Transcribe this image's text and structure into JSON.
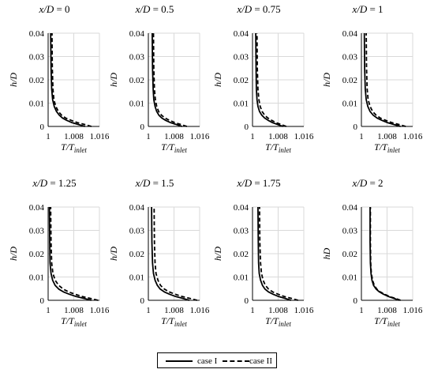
{
  "chart_data": [
    {
      "type": "line",
      "title": "x/D = 0",
      "title_parts": {
        "var": "x/D",
        "rest": " = 0"
      },
      "xlabel": "T/T_inlet",
      "ylabel": "h/D",
      "xlim": [
        1,
        1.016
      ],
      "ylim": [
        0,
        0.04
      ],
      "xticks": [
        "1",
        "1.008",
        "1.016"
      ],
      "yticks": [
        "0",
        "0.01",
        "0.02",
        "0.03",
        "0.04"
      ],
      "grid": true,
      "series": [
        {
          "name": "case I",
          "style": "solid",
          "x": [
            1.0115,
            1.0095,
            1.0075,
            1.0058,
            1.0045,
            1.0035,
            1.0026,
            1.0019,
            1.0014,
            1.0011,
            1.0009,
            1.0008
          ],
          "y": [
            0,
            0.0008,
            0.0016,
            0.0026,
            0.0036,
            0.0048,
            0.0064,
            0.0086,
            0.0115,
            0.016,
            0.025,
            0.04
          ]
        },
        {
          "name": "case II",
          "style": "dashed",
          "x": [
            1.0135,
            1.0115,
            1.0092,
            1.0072,
            1.0055,
            1.0042,
            1.0032,
            1.0024,
            1.0018,
            1.0015,
            1.0013,
            1.0012
          ],
          "y": [
            0,
            0.0008,
            0.0016,
            0.0026,
            0.0036,
            0.0048,
            0.0064,
            0.0086,
            0.0115,
            0.016,
            0.025,
            0.04
          ]
        }
      ]
    },
    {
      "type": "line",
      "title": "x/D = 0.5",
      "title_parts": {
        "var": "x/D",
        "rest": " = 0.5"
      },
      "xlabel": "T/T_inlet",
      "ylabel": "h/D",
      "xlim": [
        1,
        1.016
      ],
      "ylim": [
        0,
        0.04
      ],
      "xticks": [
        "1",
        "1.008",
        "1.016"
      ],
      "yticks": [
        "0",
        "0.01",
        "0.02",
        "0.03",
        "0.04"
      ],
      "grid": true,
      "series": [
        {
          "name": "case I",
          "style": "solid",
          "x": [
            1.0105,
            1.0088,
            1.007,
            1.0054,
            1.0042,
            1.0033,
            1.0026,
            1.0021,
            1.0017,
            1.0015,
            1.0013,
            1.0012
          ],
          "y": [
            0,
            0.0008,
            0.0016,
            0.0026,
            0.0036,
            0.0048,
            0.0064,
            0.0086,
            0.0115,
            0.016,
            0.025,
            0.04
          ]
        },
        {
          "name": "case II",
          "style": "dashed",
          "x": [
            1.012,
            1.0102,
            1.0083,
            1.0066,
            1.0052,
            1.0041,
            1.0032,
            1.0026,
            1.0022,
            1.0019,
            1.0017,
            1.0016
          ],
          "y": [
            0,
            0.0008,
            0.0016,
            0.0026,
            0.0036,
            0.0048,
            0.0064,
            0.0086,
            0.0115,
            0.016,
            0.025,
            0.04
          ]
        }
      ]
    },
    {
      "type": "line",
      "title": "x/D = 0.75",
      "title_parts": {
        "var": "x/D",
        "rest": " = 0.75"
      },
      "xlabel": "T/T_inlet",
      "ylabel": "h/D",
      "xlim": [
        1,
        1.016
      ],
      "ylim": [
        0,
        0.04
      ],
      "xticks": [
        "1",
        "1.008",
        "1.016"
      ],
      "yticks": [
        "0",
        "0.01",
        "0.02",
        "0.03",
        "0.04"
      ],
      "grid": true,
      "series": [
        {
          "name": "case I",
          "style": "solid",
          "x": [
            1.0095,
            1.0079,
            1.0063,
            1.0049,
            1.0038,
            1.0029,
            1.0022,
            1.0017,
            1.0014,
            1.0012,
            1.0011,
            1.001
          ],
          "y": [
            0,
            0.0008,
            0.0016,
            0.0026,
            0.0036,
            0.0048,
            0.0064,
            0.0086,
            0.0115,
            0.016,
            0.025,
            0.04
          ]
        },
        {
          "name": "case II",
          "style": "dashed",
          "x": [
            1.0105,
            1.009,
            1.0074,
            1.006,
            1.0048,
            1.0038,
            1.003,
            1.0024,
            1.002,
            1.0017,
            1.0015,
            1.0014
          ],
          "y": [
            0,
            0.0008,
            0.0016,
            0.0026,
            0.0036,
            0.0048,
            0.0064,
            0.0086,
            0.0115,
            0.016,
            0.025,
            0.04
          ]
        }
      ]
    },
    {
      "type": "line",
      "title": "x/D = 1",
      "title_parts": {
        "var": "x/D",
        "rest": " = 1"
      },
      "xlabel": "T/T_inlet",
      "ylabel": "h/D",
      "xlim": [
        1,
        1.016
      ],
      "ylim": [
        0,
        0.04
      ],
      "xticks": [
        "1",
        "1.008",
        "1.016"
      ],
      "yticks": [
        "0",
        "0.01",
        "0.02",
        "0.03",
        "0.04"
      ],
      "grid": true,
      "series": [
        {
          "name": "case I",
          "style": "solid",
          "x": [
            1.0122,
            1.0102,
            1.0082,
            1.0064,
            1.0049,
            1.0037,
            1.0027,
            1.002,
            1.0015,
            1.0012,
            1.001,
            1.0009
          ],
          "y": [
            0,
            0.0008,
            0.0016,
            0.0026,
            0.0036,
            0.0048,
            0.0064,
            0.0086,
            0.0115,
            0.016,
            0.025,
            0.04
          ]
        },
        {
          "name": "case II",
          "style": "dashed",
          "x": [
            1.0138,
            1.0118,
            1.0096,
            1.0076,
            1.0059,
            1.0046,
            1.0035,
            1.0027,
            1.0021,
            1.0018,
            1.0016,
            1.0015
          ],
          "y": [
            0,
            0.0008,
            0.0016,
            0.0026,
            0.0036,
            0.0048,
            0.0064,
            0.0086,
            0.0115,
            0.016,
            0.025,
            0.04
          ]
        }
      ]
    },
    {
      "type": "line",
      "title": "x/D = 1.25",
      "title_parts": {
        "var": "x/D",
        "rest": " = 1.25"
      },
      "xlabel": "T/T_inlet",
      "ylabel": "h/D",
      "xlim": [
        1,
        1.016
      ],
      "ylim": [
        0,
        0.04
      ],
      "xticks": [
        "1",
        "1.008",
        "1.016"
      ],
      "yticks": [
        "0",
        "0.01",
        "0.02",
        "0.03",
        "0.04"
      ],
      "grid": true,
      "series": [
        {
          "name": "case I",
          "style": "solid",
          "x": [
            1.0135,
            1.0112,
            1.0088,
            1.0066,
            1.0048,
            1.0033,
            1.0022,
            1.0014,
            1.0009,
            1.0006,
            1.0005,
            1.0004
          ],
          "y": [
            0,
            0.0008,
            0.0016,
            0.0026,
            0.0036,
            0.0048,
            0.0064,
            0.0086,
            0.0115,
            0.016,
            0.025,
            0.04
          ]
        },
        {
          "name": "case II",
          "style": "dashed",
          "x": [
            1.0155,
            1.0132,
            1.0107,
            1.0084,
            1.0064,
            1.0047,
            1.0033,
            1.0022,
            1.0015,
            1.0011,
            1.0009,
            1.0008
          ],
          "y": [
            0,
            0.0008,
            0.0016,
            0.0026,
            0.0036,
            0.0048,
            0.0064,
            0.0086,
            0.0115,
            0.016,
            0.025,
            0.04
          ]
        }
      ]
    },
    {
      "type": "line",
      "title": "x/D = 1.5",
      "title_parts": {
        "var": "x/D",
        "rest": " = 1.5"
      },
      "xlabel": "T/T_inlet",
      "ylabel": "h/D",
      "xlim": [
        1,
        1.016
      ],
      "ylim": [
        0,
        0.04
      ],
      "xticks": [
        "1",
        "1.008",
        "1.016"
      ],
      "yticks": [
        "0",
        "0.01",
        "0.02",
        "0.03",
        "0.04"
      ],
      "grid": true,
      "series": [
        {
          "name": "case I",
          "style": "solid",
          "x": [
            1.0128,
            1.0108,
            1.0086,
            1.0066,
            1.005,
            1.0037,
            1.0028,
            1.0021,
            1.0016,
            1.0013,
            1.0011,
            1.001
          ],
          "y": [
            0,
            0.0008,
            0.0016,
            0.0026,
            0.0036,
            0.0048,
            0.0064,
            0.0086,
            0.0115,
            0.016,
            0.025,
            0.04
          ]
        },
        {
          "name": "case II",
          "style": "dashed",
          "x": [
            1.0152,
            1.013,
            1.0106,
            1.0084,
            1.0065,
            1.005,
            1.0038,
            1.003,
            1.0024,
            1.0021,
            1.0019,
            1.0018
          ],
          "y": [
            0,
            0.0008,
            0.0016,
            0.0026,
            0.0036,
            0.0048,
            0.0064,
            0.0086,
            0.0115,
            0.016,
            0.025,
            0.04
          ]
        }
      ]
    },
    {
      "type": "line",
      "title": "x/D = 1.75",
      "title_parts": {
        "var": "x/D",
        "rest": " = 1.75"
      },
      "xlabel": "T/T_inlet",
      "ylabel": "h/D",
      "xlim": [
        1,
        1.016
      ],
      "ylim": [
        0,
        0.04
      ],
      "xticks": [
        "1",
        "1.008",
        "1.016"
      ],
      "yticks": [
        "0",
        "0.01",
        "0.02",
        "0.03",
        "0.04"
      ],
      "grid": true,
      "series": [
        {
          "name": "case I",
          "style": "solid",
          "x": [
            1.012,
            1.0102,
            1.0082,
            1.0064,
            1.005,
            1.0039,
            1.0031,
            1.0025,
            1.0021,
            1.0019,
            1.0018,
            1.0017
          ],
          "y": [
            0,
            0.0008,
            0.0016,
            0.0026,
            0.0036,
            0.0048,
            0.0064,
            0.0086,
            0.0115,
            0.016,
            0.025,
            0.04
          ]
        },
        {
          "name": "case II",
          "style": "dashed",
          "x": [
            1.0142,
            1.0122,
            1.01,
            1.008,
            1.0063,
            1.005,
            1.004,
            1.0033,
            1.0028,
            1.0025,
            1.0023,
            1.0022
          ],
          "y": [
            0,
            0.0008,
            0.0016,
            0.0026,
            0.0036,
            0.0048,
            0.0064,
            0.0086,
            0.0115,
            0.016,
            0.025,
            0.04
          ]
        }
      ]
    },
    {
      "type": "line",
      "title": "x/D = 2",
      "title_parts": {
        "var": "x/D",
        "rest": " = 2"
      },
      "xlabel": "T/T_inlet",
      "ylabel": "hD",
      "xlim": [
        1,
        1.016
      ],
      "ylim": [
        0,
        0.04
      ],
      "xticks": [
        "1",
        "1.008",
        "1.016"
      ],
      "yticks": [
        "0",
        "0.01",
        "0.02",
        "0.03",
        "0.04"
      ],
      "grid": true,
      "series": [
        {
          "name": "case I",
          "style": "solid",
          "x": [
            1.0118,
            1.0102,
            1.0085,
            1.0069,
            1.0056,
            1.0046,
            1.0038,
            1.0033,
            1.003,
            1.0028,
            1.0027,
            1.0027
          ],
          "y": [
            0,
            0.0008,
            0.0016,
            0.0026,
            0.0036,
            0.0048,
            0.0064,
            0.0086,
            0.0115,
            0.016,
            0.025,
            0.04
          ]
        },
        {
          "name": "case II",
          "style": "dashed",
          "x": [
            1.0122,
            1.0106,
            1.0088,
            1.0072,
            1.0059,
            1.0048,
            1.004,
            1.0035,
            1.0031,
            1.0029,
            1.0028,
            1.0028
          ],
          "y": [
            0,
            0.0008,
            0.0016,
            0.0026,
            0.0036,
            0.0048,
            0.0064,
            0.0086,
            0.0115,
            0.016,
            0.025,
            0.04
          ]
        }
      ]
    }
  ],
  "legend": {
    "items": [
      {
        "label": "case I",
        "style": "solid"
      },
      {
        "label": "case II",
        "style": "dashed"
      }
    ]
  }
}
